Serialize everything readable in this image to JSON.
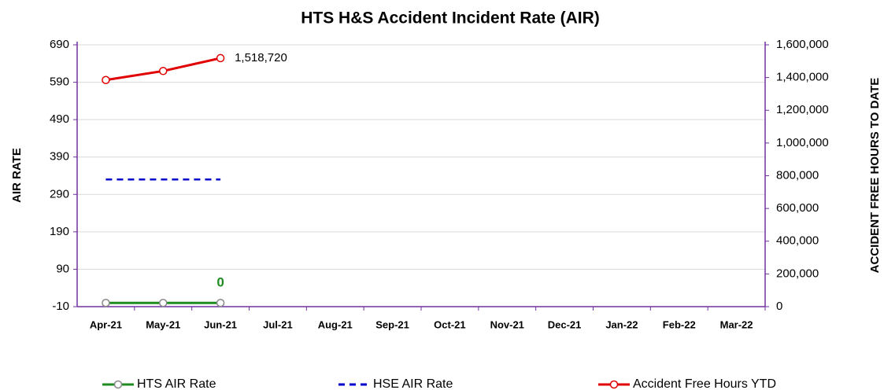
{
  "chart_data": {
    "type": "line",
    "title": "HTS H&S Accident Incident Rate (AIR)",
    "y_label": "AIR RATE",
    "y2_label": "ACCIDENT FREE HOURS TO DATE",
    "categories": [
      "Apr-21",
      "May-21",
      "Jun-21",
      "Jul-21",
      "Aug-21",
      "Sep-21",
      "Oct-21",
      "Nov-21",
      "Dec-21",
      "Jan-22",
      "Feb-22",
      "Mar-22"
    ],
    "ylim": [
      -10,
      690
    ],
    "yticks": [
      -10,
      90,
      190,
      290,
      390,
      490,
      590,
      690
    ],
    "y2lim": [
      0,
      1600000
    ],
    "y2ticks": [
      {
        "value": 0,
        "label": "0"
      },
      {
        "value": 200000,
        "label": "200,000"
      },
      {
        "value": 400000,
        "label": "400,000"
      },
      {
        "value": 600000,
        "label": "600,000"
      },
      {
        "value": 800000,
        "label": "800,000"
      },
      {
        "value": 1000000,
        "label": "1,000,000"
      },
      {
        "value": 1200000,
        "label": "1,200,000"
      },
      {
        "value": 1400000,
        "label": "1,400,000"
      },
      {
        "value": 1600000,
        "label": "1,600,000"
      }
    ],
    "grid": true,
    "legend": "bottom",
    "series": [
      {
        "name": "HTS AIR Rate",
        "color": "#1e8c1e",
        "marker": true,
        "dash": false,
        "values": [
          0,
          0,
          0,
          null,
          null,
          null,
          null,
          null,
          null,
          null,
          null,
          null
        ],
        "value_labels": [
          null,
          null,
          "0",
          null,
          null,
          null,
          null,
          null,
          null,
          null,
          null,
          null
        ]
      },
      {
        "name": "HSE AIR Rate",
        "color": "#0000cc",
        "marker": false,
        "dash": true,
        "values": [
          330,
          330,
          330,
          null,
          null,
          null,
          null,
          null,
          null,
          null,
          null,
          null
        ]
      },
      {
        "name": "Accident Free Hours YTD",
        "color": "#e00000",
        "marker": true,
        "dash": false,
        "axis": "y2",
        "values": [
          1385000,
          1440000,
          1518720,
          null,
          null,
          null,
          null,
          null,
          null,
          null,
          null,
          null
        ],
        "value_labels": [
          null,
          null,
          "1,518,720",
          null,
          null,
          null,
          null,
          null,
          null,
          null,
          null,
          null
        ]
      }
    ]
  }
}
